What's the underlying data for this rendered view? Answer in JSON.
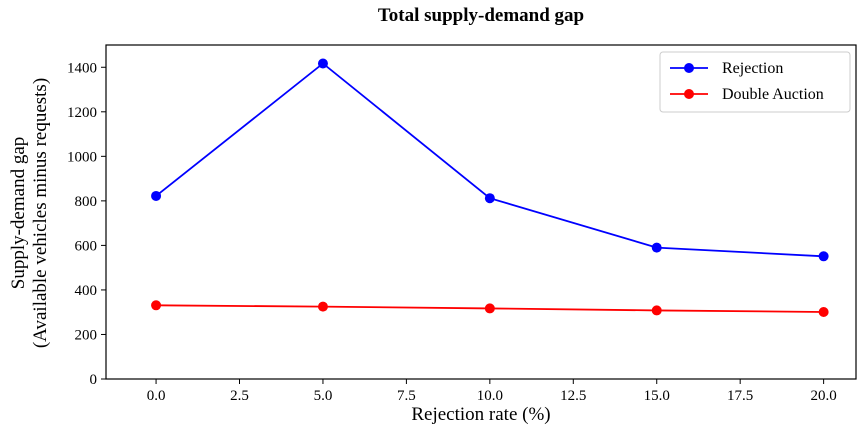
{
  "chart_data": {
    "type": "line",
    "title": "Total supply-demand gap",
    "xlabel": "Rejection rate (%)",
    "ylabel_lines": [
      "Supply-demand gap",
      "(Available vehicles minus requests)"
    ],
    "xlim": [
      -1.5,
      21.0
    ],
    "ylim": [
      0,
      1500
    ],
    "xticks": [
      0.0,
      2.5,
      5.0,
      7.5,
      10.0,
      12.5,
      15.0,
      17.5,
      20.0
    ],
    "xtick_labels": [
      "0.0",
      "2.5",
      "5.0",
      "7.5",
      "10.0",
      "12.5",
      "15.0",
      "17.5",
      "20.0"
    ],
    "yticks": [
      0,
      200,
      400,
      600,
      800,
      1000,
      1200,
      1400
    ],
    "ytick_labels": [
      "0",
      "200",
      "400",
      "600",
      "800",
      "1000",
      "1200",
      "1400"
    ],
    "grid": false,
    "legend_position": "top-right",
    "x": [
      0,
      5,
      10,
      15,
      20
    ],
    "series": [
      {
        "name": "Rejection",
        "color": "#0000ff",
        "values": [
          822,
          1417,
          812,
          590,
          551
        ]
      },
      {
        "name": "Double Auction",
        "color": "#ff0000",
        "values": [
          331,
          325,
          317,
          308,
          301
        ]
      }
    ]
  }
}
